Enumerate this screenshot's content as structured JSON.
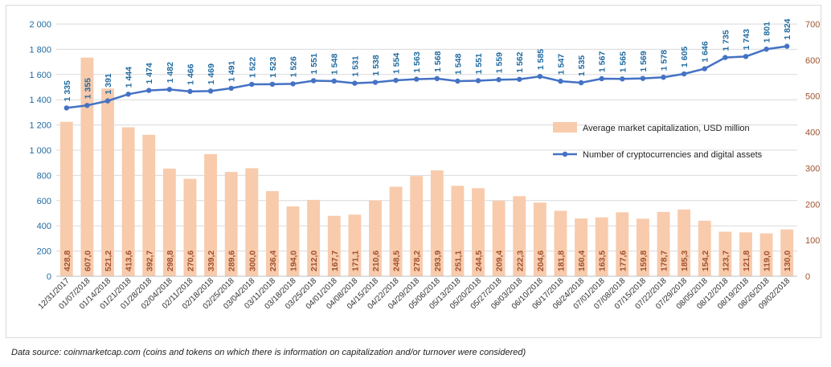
{
  "chart_data": {
    "type": "bar+line",
    "categories": [
      "12/31/2017",
      "01/07/2018",
      "01/14/2018",
      "01/21/2018",
      "01/28/2018",
      "02/04/2018",
      "02/11/2018",
      "02/18/2018",
      "02/25/2018",
      "03/04/2018",
      "03/11/2018",
      "03/18/2018",
      "03/25/2018",
      "04/01/2018",
      "04/08/2018",
      "04/15/2018",
      "04/22/2018",
      "04/29/2018",
      "05/06/2018",
      "05/13/2018",
      "05/20/2018",
      "05/27/2018",
      "06/03/2018",
      "06/10/2018",
      "06/17/2018",
      "06/24/2018",
      "07/01/2018",
      "07/08/2018",
      "07/15/2018",
      "07/22/2018",
      "07/29/2018",
      "08/05/2018",
      "08/12/2018",
      "08/19/2018",
      "08/26/2018",
      "09/02/2018"
    ],
    "series": [
      {
        "name": "Average market capitalization, USD million",
        "type": "bar",
        "axis": "right",
        "color": "#f8cbad",
        "label_color": "#a0522d",
        "values": [
          428.8,
          607.0,
          521.2,
          413.6,
          392.7,
          298.8,
          270.6,
          339.2,
          289.6,
          300.0,
          236.4,
          194.0,
          212.0,
          167.7,
          171.1,
          210.6,
          248.5,
          278.2,
          293.9,
          251.1,
          244.5,
          209.4,
          222.3,
          204.6,
          181.8,
          160.4,
          163.5,
          177.6,
          159.8,
          178.7,
          185.3,
          154.2,
          123.7,
          121.8,
          119.0,
          130.0
        ],
        "labels": [
          "428,8",
          "607,0",
          "521,2",
          "413,6",
          "392,7",
          "298,8",
          "270,6",
          "339,2",
          "289,6",
          "300,0",
          "236,4",
          "194,0",
          "212,0",
          "167,7",
          "171,1",
          "210,6",
          "248,5",
          "278,2",
          "293,9",
          "251,1",
          "244,5",
          "209,4",
          "222,3",
          "204,6",
          "181,8",
          "160,4",
          "163,5",
          "177,6",
          "159,8",
          "178,7",
          "185,3",
          "154,2",
          "123,7",
          "121,8",
          "119,0",
          "130,0"
        ]
      },
      {
        "name": "Number of cryptocurrencies and digital assets",
        "type": "line",
        "axis": "left",
        "color": "#4472c4",
        "label_color": "#1f6aa0",
        "values": [
          1335,
          1355,
          1391,
          1444,
          1474,
          1482,
          1466,
          1469,
          1491,
          1522,
          1523,
          1526,
          1551,
          1548,
          1531,
          1538,
          1554,
          1563,
          1568,
          1548,
          1551,
          1559,
          1562,
          1585,
          1547,
          1535,
          1567,
          1565,
          1569,
          1578,
          1605,
          1646,
          1735,
          1743,
          1801,
          1824
        ],
        "labels": [
          "1 335",
          "1 355",
          "1 391",
          "1 444",
          "1 474",
          "1 482",
          "1 466",
          "1 469",
          "1 491",
          "1 522",
          "1 523",
          "1 526",
          "1 551",
          "1 548",
          "1 531",
          "1 538",
          "1 554",
          "1 563",
          "1 568",
          "1 548",
          "1 551",
          "1 559",
          "1 562",
          "1 585",
          "1 547",
          "1 535",
          "1 567",
          "1 565",
          "1 569",
          "1 578",
          "1 605",
          "1 646",
          "1 735",
          "1 743",
          "1 801",
          "1 824"
        ]
      }
    ],
    "y_left": {
      "min": 0,
      "max": 2000,
      "ticks": [
        0,
        200,
        400,
        600,
        800,
        1000,
        1200,
        1400,
        1600,
        1800,
        2000
      ],
      "tick_labels": [
        "0",
        "200",
        "400",
        "600",
        "800",
        "1 000",
        "1 200",
        "1 400",
        "1 600",
        "1 800",
        "2 000"
      ],
      "color": "#1f6aa0"
    },
    "y_right": {
      "min": 0,
      "max": 700,
      "ticks": [
        0,
        100,
        200,
        300,
        400,
        500,
        600,
        700
      ],
      "tick_labels": [
        "0",
        "100",
        "200",
        "300",
        "400",
        "500",
        "600",
        "700"
      ],
      "color": "#a0522d"
    },
    "grid": true,
    "gridline_color": "#d9d9d9",
    "legend_position": "right-middle",
    "title": "",
    "xlabel": "",
    "ylabel": ""
  },
  "source_note": "Data source: coinmarketcap.com (coins and tokens on which there is information on capitalization and/or turnover were considered)"
}
